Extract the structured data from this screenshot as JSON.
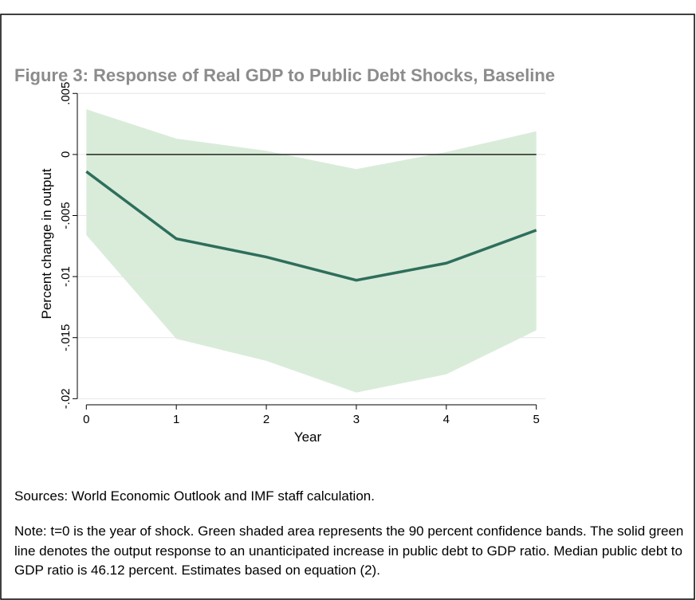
{
  "chart_data": {
    "type": "line",
    "title": "Figure 3: Response of Real GDP to Public Debt Shocks, Baseline",
    "x_label": "Year",
    "y_label": "Percent change in output",
    "x": [
      0,
      1,
      2,
      3,
      4,
      5
    ],
    "values": [
      -0.0014,
      -0.0069,
      -0.0084,
      -0.0103,
      -0.0089,
      -0.0062
    ],
    "color": "#2e6e5c",
    "band": {
      "upper": [
        0.0037,
        0.0013,
        0.0003,
        -0.0012,
        0.0002,
        0.0019
      ],
      "lower": [
        -0.0066,
        -0.0151,
        -0.0169,
        -0.0195,
        -0.018,
        -0.0144
      ],
      "color": "#d9ecd9"
    },
    "hline": 0,
    "xlim": [
      -0.1,
      5.1
    ],
    "ylim": [
      -0.0205,
      0.0058
    ],
    "xticks": [
      0,
      1,
      2,
      3,
      4,
      5
    ],
    "yticks": [
      {
        "value": 0.005,
        "label": ".005"
      },
      0,
      {
        "value": -0.005,
        "label": "-.005"
      },
      {
        "value": -0.01,
        "label": "-.01"
      },
      {
        "value": -0.015,
        "label": "-.015"
      },
      {
        "value": -0.02,
        "label": "-.02"
      }
    ],
    "grid": true,
    "sources": "Sources: World Economic Outlook and IMF staff calculation.",
    "note": "Note: t=0 is the year of shock. Green shaded area represents the 90 percent confidence bands. The solid green line denotes the output response to an unanticipated increase in public debt to GDP ratio. Median public debt to GDP ratio is 46.12 percent. Estimates based on equation (2)."
  }
}
